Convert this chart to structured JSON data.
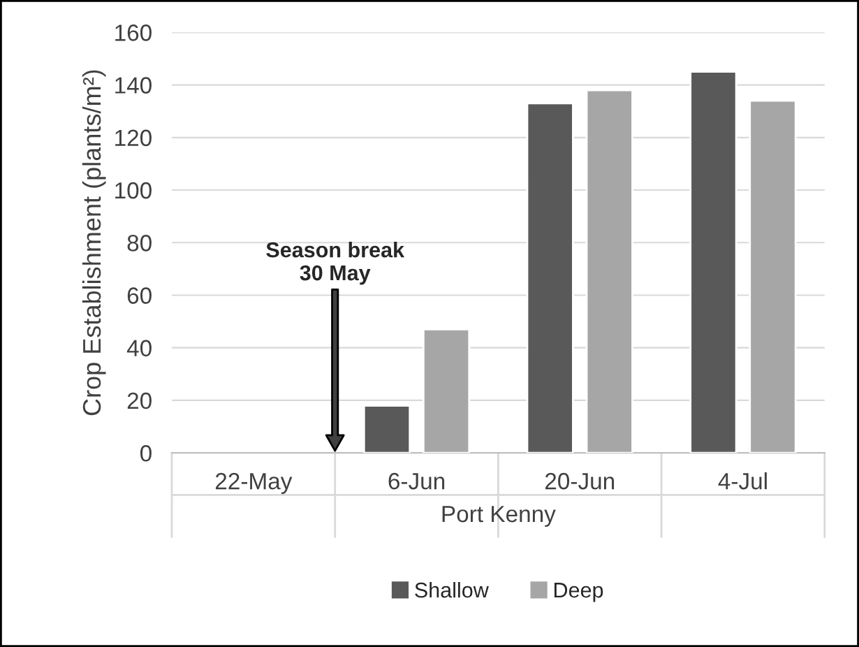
{
  "chart_data": {
    "type": "bar",
    "ylabel": "Crop Establishment (plants/m²)",
    "xlabel": "Port Kenny",
    "categories": [
      "22-May",
      "6-Jun",
      "20-Jun",
      "4-Jul"
    ],
    "series": [
      {
        "name": "Shallow",
        "color": "#595959",
        "values": [
          null,
          18,
          133,
          145
        ]
      },
      {
        "name": "Deep",
        "color": "#a6a6a6",
        "values": [
          null,
          47,
          138,
          134
        ]
      }
    ],
    "ylim": [
      0,
      160
    ],
    "yticks": [
      0,
      20,
      40,
      60,
      80,
      100,
      120,
      140,
      160
    ],
    "grid": "y",
    "legend": "bottom",
    "annotations": [
      "Season break\n30 May"
    ]
  }
}
